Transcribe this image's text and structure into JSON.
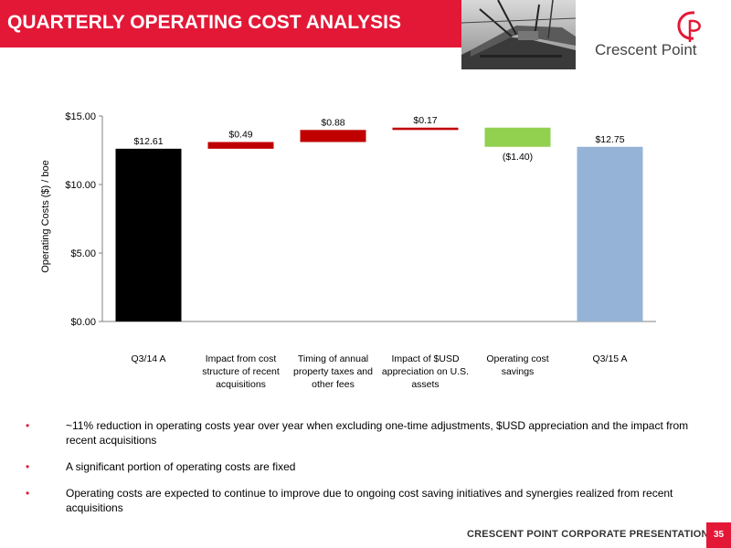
{
  "header": {
    "title": "QUARTERLY OPERATING COST ANALYSIS",
    "brand_color": "#e31837"
  },
  "logo": {
    "text": "Crescent Point",
    "icon": "crescent-point-logo-icon"
  },
  "photo": {
    "icon": "drilling-rig-photo"
  },
  "chart_data": {
    "type": "bar",
    "subtype": "waterfall",
    "title": "",
    "xlabel": "",
    "ylabel": "Operating Costs ($) / boe",
    "ylim": [
      0,
      15
    ],
    "yticks": [
      "$0.00",
      "$5.00",
      "$10.00",
      "$15.00"
    ],
    "ytick_values": [
      0,
      5,
      10,
      15
    ],
    "grid": false,
    "categories": [
      "Q3/14 A",
      "Impact from cost structure of recent acquisitions",
      "Timing of annual property taxes and other fees",
      "Impact of $USD appreciation on U.S. assets",
      "Operating cost savings",
      "Q3/15 A"
    ],
    "category_lines": [
      [
        "Q3/14 A"
      ],
      [
        "Impact from cost",
        "structure of recent",
        "acquisitions"
      ],
      [
        "Timing of annual",
        "property taxes and",
        "other fees"
      ],
      [
        "Impact of $USD",
        "appreciation on U.S.",
        "assets"
      ],
      [
        "Operating cost",
        "savings"
      ],
      [
        "Q3/15 A"
      ]
    ],
    "values": [
      12.61,
      0.49,
      0.88,
      0.17,
      -1.4,
      12.75
    ],
    "kinds": [
      "total",
      "delta",
      "delta",
      "delta",
      "delta",
      "total"
    ],
    "data_labels": [
      "$12.61",
      "$0.49",
      "$0.88",
      "$0.17",
      "($1.40)",
      "$12.75"
    ],
    "colors": [
      "#000000",
      "#c00000",
      "#c00000",
      "#c00000",
      "#92d050",
      "#95b3d7"
    ]
  },
  "bullets": [
    "~11% reduction in operating costs year over year when excluding one-time adjustments, $USD appreciation and the impact from recent acquisitions",
    "A significant portion of operating costs are fixed",
    "Operating costs are expected to continue to improve due to ongoing cost saving initiatives and synergies realized from recent acquisitions"
  ],
  "footer": {
    "text": "CRESCENT POINT CORPORATE PRESENTATION",
    "page_number": "35"
  }
}
